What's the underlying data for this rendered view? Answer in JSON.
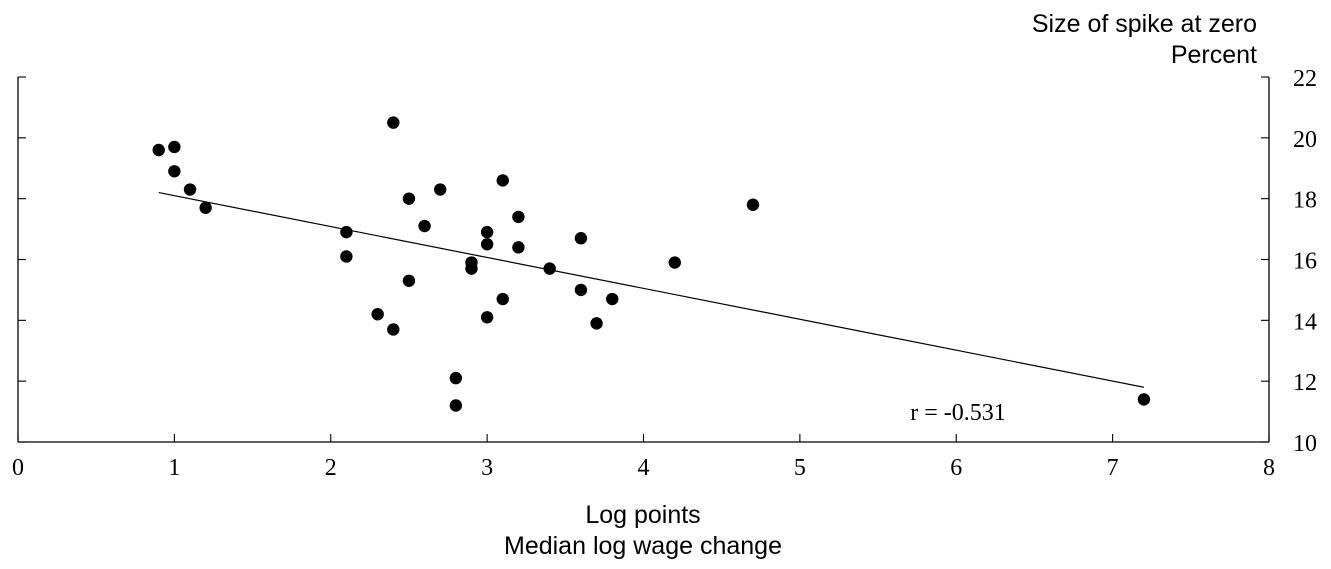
{
  "chart_data": {
    "type": "scatter",
    "title": "",
    "xlabel": "Median log wage change",
    "xunit": "Log points",
    "ylabel": "Size of spike at zero",
    "yunit": "Percent",
    "xlim": [
      0,
      8
    ],
    "ylim": [
      10,
      22
    ],
    "xticks": [
      0,
      1,
      2,
      3,
      4,
      5,
      6,
      7,
      8
    ],
    "yticks": [
      10,
      12,
      14,
      16,
      18,
      20,
      22
    ],
    "y_axis_side": "right",
    "grid": false,
    "legend": "none",
    "marker_color": "#000000",
    "line_color": "#000000",
    "points": [
      {
        "x": 0.9,
        "y": 19.6
      },
      {
        "x": 1.0,
        "y": 19.7
      },
      {
        "x": 1.0,
        "y": 18.9
      },
      {
        "x": 1.1,
        "y": 18.3
      },
      {
        "x": 1.2,
        "y": 17.7
      },
      {
        "x": 2.1,
        "y": 16.9
      },
      {
        "x": 2.1,
        "y": 16.1
      },
      {
        "x": 2.3,
        "y": 14.2
      },
      {
        "x": 2.4,
        "y": 20.5
      },
      {
        "x": 2.4,
        "y": 13.7
      },
      {
        "x": 2.5,
        "y": 18.0
      },
      {
        "x": 2.5,
        "y": 15.3
      },
      {
        "x": 2.6,
        "y": 17.1
      },
      {
        "x": 2.7,
        "y": 18.3
      },
      {
        "x": 2.8,
        "y": 12.1
      },
      {
        "x": 2.8,
        "y": 11.2
      },
      {
        "x": 2.9,
        "y": 15.9
      },
      {
        "x": 2.9,
        "y": 15.7
      },
      {
        "x": 3.0,
        "y": 16.9
      },
      {
        "x": 3.0,
        "y": 16.5
      },
      {
        "x": 3.0,
        "y": 14.1
      },
      {
        "x": 3.1,
        "y": 18.6
      },
      {
        "x": 3.1,
        "y": 14.7
      },
      {
        "x": 3.2,
        "y": 17.4
      },
      {
        "x": 3.2,
        "y": 16.4
      },
      {
        "x": 3.4,
        "y": 15.7
      },
      {
        "x": 3.6,
        "y": 16.7
      },
      {
        "x": 3.6,
        "y": 15.0
      },
      {
        "x": 3.7,
        "y": 13.9
      },
      {
        "x": 3.8,
        "y": 14.7
      },
      {
        "x": 4.2,
        "y": 15.9
      },
      {
        "x": 4.7,
        "y": 17.8
      },
      {
        "x": 7.2,
        "y": 11.4
      }
    ],
    "trend_line": {
      "x_start": 0.9,
      "y_start": 18.2,
      "x_end": 7.2,
      "y_end": 11.8
    },
    "annotation": "r = -0.531"
  }
}
